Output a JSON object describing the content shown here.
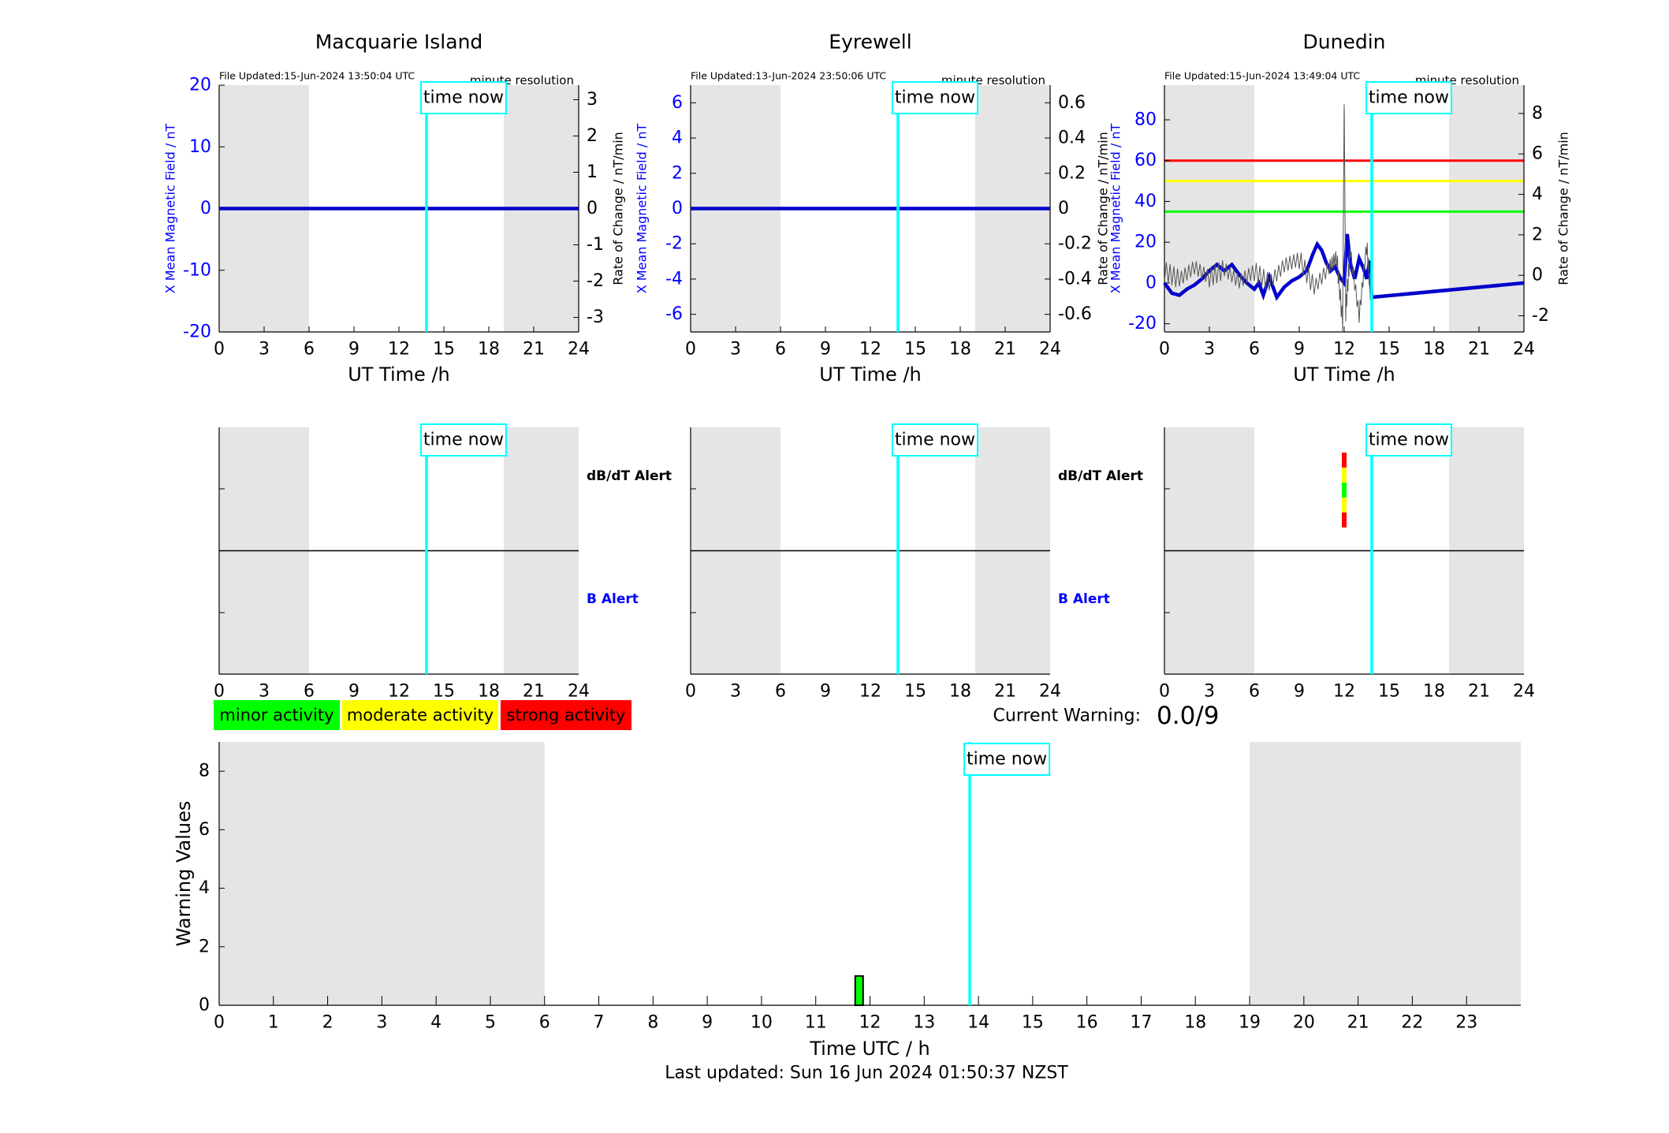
{
  "stations": [
    {
      "title": "Macquarie Island",
      "file_updated": "File Updated:15-Jun-2024 13:50:04 UTC",
      "resolution": "minute resolution",
      "left_ylabel": "X Mean Magnetic Field / nT",
      "right_ylabel": "Rate of Change / nT/min",
      "xlabel": "UT Time /h",
      "left_ticks": [
        "20",
        "10",
        "0",
        "-10",
        "-20"
      ],
      "right_ticks": [
        "3",
        "2",
        "1",
        "0",
        "-1",
        "-2",
        "-3"
      ],
      "has_thresholds": false
    },
    {
      "title": "Eyrewell",
      "file_updated": "File Updated:13-Jun-2024 23:50:06 UTC",
      "resolution": "minute resolution",
      "left_ylabel": "X Mean Magnetic Field / nT",
      "right_ylabel": "",
      "xlabel": "UT Time /h",
      "left_ticks": [
        "6",
        "4",
        "2",
        "0",
        "-2",
        "-4",
        "-6"
      ],
      "right_ticks": [
        "0.6",
        "0.4",
        "0.2",
        "0",
        "-0.2",
        "-0.4",
        "-0.6"
      ],
      "has_thresholds": false
    },
    {
      "title": "Dunedin",
      "file_updated": "File Updated:15-Jun-2024 13:49:04 UTC",
      "resolution": "minute resolution",
      "left_ylabel": "Rate of Change / nT/min",
      "left_ylabel2": "X Mean Magnetic Field / nT",
      "right_ylabel": "Rate of Change / nT/min",
      "xlabel": "UT Time /h",
      "left_ticks": [
        "80",
        "60",
        "40",
        "20",
        "0",
        "-20"
      ],
      "right_ticks": [
        "8",
        "6",
        "4",
        "2",
        "0",
        "-2"
      ],
      "has_thresholds": true
    }
  ],
  "x_ticks": [
    "0",
    "3",
    "6",
    "9",
    "12",
    "15",
    "18",
    "21",
    "24"
  ],
  "time_now_label": "time now",
  "time_now_hour": 13.84,
  "night_shading": [
    [
      0,
      6
    ],
    [
      19,
      24
    ]
  ],
  "alert_labels": {
    "dbdt": "dB/dT Alert",
    "b": "B Alert"
  },
  "legend": [
    {
      "label": "minor activity",
      "color": "#00ff00"
    },
    {
      "label": "moderate activity",
      "color": "#ffff00"
    },
    {
      "label": "strong activity",
      "color": "#ff0000"
    }
  ],
  "current_warning": {
    "label": "Current Warning:",
    "value": "0.0/9"
  },
  "footer": "Last updated: Sun 16 Jun 2024 01:50:37 NZST",
  "chart_data": [
    {
      "type": "line",
      "title": "Macquarie Island",
      "xlabel": "UT Time /h",
      "ylabel": "X Mean Magnetic Field / nT",
      "xlim": [
        0,
        24
      ],
      "ylim": [
        -20,
        20
      ],
      "y2lim": [
        -3.4,
        3.4
      ],
      "series": [
        {
          "name": "X Mean Magnetic Field",
          "x": [
            0,
            24
          ],
          "values": [
            0,
            0
          ]
        }
      ]
    },
    {
      "type": "line",
      "title": "Eyrewell",
      "xlabel": "UT Time /h",
      "ylabel": "X Mean Magnetic Field / nT",
      "xlim": [
        0,
        24
      ],
      "ylim": [
        -7,
        7
      ],
      "y2lim": [
        -0.7,
        0.7
      ],
      "series": [
        {
          "name": "X Mean Magnetic Field",
          "x": [
            0,
            24
          ],
          "values": [
            0,
            0
          ]
        }
      ]
    },
    {
      "type": "line",
      "title": "Dunedin",
      "xlabel": "UT Time /h",
      "ylabel": "X Mean Magnetic Field / nT",
      "y2label": "Rate of Change / nT/min",
      "xlim": [
        0,
        24
      ],
      "ylim": [
        -24,
        97
      ],
      "y2lim": [
        -2.8,
        9.4
      ],
      "thresholds": [
        {
          "value": 60,
          "color": "#ff0000"
        },
        {
          "value": 50,
          "color": "#ffff00"
        },
        {
          "value": 35,
          "color": "#00ff00"
        }
      ],
      "series": [
        {
          "name": "X Mean Magnetic Field",
          "x": [
            0,
            0.5,
            1,
            1.5,
            2,
            2.5,
            3,
            3.5,
            4,
            4.5,
            5,
            5.5,
            6,
            6.3,
            6.6,
            7,
            7.5,
            8,
            8.5,
            9,
            9.5,
            9.9,
            10.2,
            10.5,
            10.8,
            11.1,
            11.4,
            11.7,
            12,
            12.2,
            12.4,
            12.7,
            13,
            13.3,
            13.5,
            13.7,
            13.84,
            24
          ],
          "values": [
            0,
            -5,
            -6,
            -3,
            -1,
            2,
            6,
            9,
            6,
            9,
            4,
            0,
            -3,
            0,
            -6,
            3,
            -7,
            -2,
            1,
            3,
            6,
            14,
            19,
            16,
            10,
            6,
            8,
            3,
            0,
            24,
            10,
            2,
            12,
            7,
            2,
            11,
            -7,
            0
          ]
        },
        {
          "name": "Rate of Change",
          "x": [
            0,
            1,
            2,
            3,
            4,
            5,
            6,
            7,
            8,
            9,
            10,
            11,
            11.5,
            11.9,
            12,
            12.1,
            12.4,
            13,
            13.5,
            13.84
          ],
          "values": [
            0.2,
            -0.2,
            0.4,
            -0.1,
            0.3,
            -0.3,
            0.2,
            -0.4,
            0.5,
            0.8,
            -0.6,
            0.4,
            0.9,
            -2.4,
            8.8,
            -1.8,
            1.2,
            -2.0,
            1.5,
            -1.5
          ]
        }
      ]
    },
    {
      "type": "bar",
      "xlabel": "Time UTC / h",
      "ylabel": "Warning Values",
      "xlim": [
        0,
        24
      ],
      "ylim": [
        0,
        9
      ],
      "categories": [
        "11.8"
      ],
      "values": [
        1
      ],
      "x_ticks": [
        "0",
        "1",
        "2",
        "3",
        "4",
        "5",
        "6",
        "7",
        "8",
        "9",
        "10",
        "11",
        "12",
        "13",
        "14",
        "15",
        "16",
        "17",
        "18",
        "19",
        "20",
        "21",
        "22",
        "23"
      ],
      "y_ticks": [
        "0",
        "2",
        "4",
        "6",
        "8"
      ]
    }
  ],
  "alert_marks": [
    {
      "station": "Dunedin",
      "hour": 12,
      "segments": [
        "#ff0000",
        "#ffff00",
        "#00ff00",
        "#ffff00",
        "#ff0000"
      ]
    }
  ]
}
